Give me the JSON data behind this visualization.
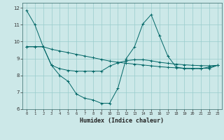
{
  "xlabel": "Humidex (Indice chaleur)",
  "ylabel": "",
  "bg_color": "#cce8e8",
  "line_color": "#006666",
  "grid_color": "#99cccc",
  "xlim": [
    -0.5,
    23.5
  ],
  "ylim": [
    6,
    12.3
  ],
  "xticks": [
    0,
    1,
    2,
    3,
    4,
    5,
    6,
    7,
    8,
    9,
    10,
    11,
    12,
    13,
    14,
    15,
    16,
    17,
    18,
    19,
    20,
    21,
    22,
    23
  ],
  "yticks": [
    6,
    7,
    8,
    9,
    10,
    11,
    12
  ],
  "line1_x": [
    0,
    1,
    2,
    3,
    4,
    5,
    6,
    7,
    8,
    9,
    10,
    11,
    12,
    13,
    14,
    15,
    16,
    17,
    18,
    19,
    20,
    21,
    22,
    23
  ],
  "line1_y": [
    11.85,
    11.0,
    9.7,
    9.55,
    9.45,
    9.35,
    9.25,
    9.15,
    9.05,
    8.95,
    8.85,
    8.78,
    8.72,
    8.67,
    8.62,
    8.57,
    8.52,
    8.48,
    8.45,
    8.43,
    8.42,
    8.42,
    8.42,
    8.6
  ],
  "line2_x": [
    0,
    1,
    2,
    3,
    4,
    5,
    6,
    7,
    8,
    9,
    10,
    11,
    12,
    13,
    14,
    15,
    16,
    17,
    18,
    19,
    20,
    21,
    22,
    23
  ],
  "line2_y": [
    9.7,
    9.7,
    9.7,
    8.6,
    8.0,
    7.65,
    6.9,
    6.65,
    6.55,
    6.35,
    6.35,
    7.25,
    9.0,
    9.7,
    11.05,
    11.6,
    10.35,
    9.15,
    8.5,
    8.4,
    8.4,
    8.4,
    8.5,
    8.6
  ],
  "line3_x": [
    0,
    1,
    2,
    3,
    4,
    5,
    6,
    7,
    8,
    9,
    10,
    11,
    12,
    13,
    14,
    15,
    16,
    17,
    18,
    19,
    20,
    21,
    22,
    23
  ],
  "line3_y": [
    9.7,
    9.7,
    9.7,
    8.6,
    8.4,
    8.3,
    8.25,
    8.25,
    8.25,
    8.25,
    8.55,
    8.75,
    8.87,
    8.93,
    8.93,
    8.87,
    8.78,
    8.72,
    8.67,
    8.63,
    8.6,
    8.58,
    8.57,
    8.6
  ]
}
